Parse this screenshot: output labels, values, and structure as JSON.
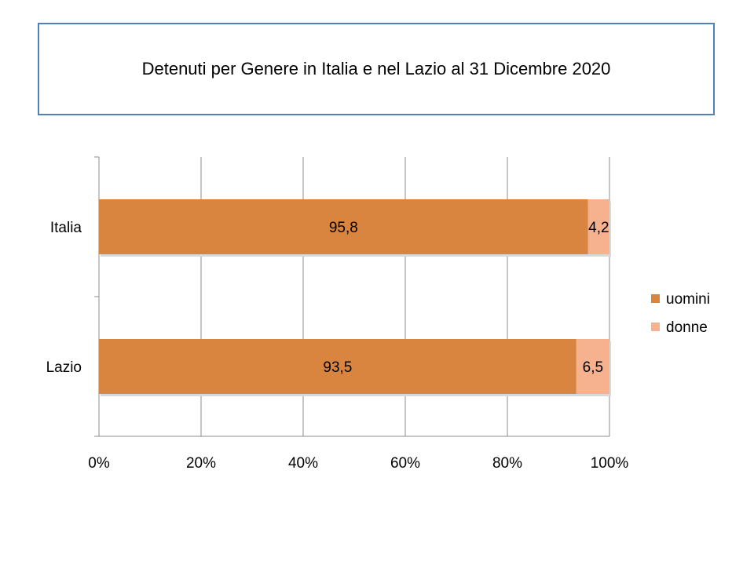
{
  "chart_data": {
    "type": "bar",
    "orientation": "horizontal",
    "stacked": "percent",
    "title": "Detenuti per Genere in Italia e nel Lazio al 31 Dicembre 2020",
    "categories": [
      "Italia",
      "Lazio"
    ],
    "series": [
      {
        "name": "uomini",
        "values": [
          95.8,
          93.5
        ],
        "labels": [
          "95,8",
          "93,5"
        ],
        "color": "#d9843f"
      },
      {
        "name": "donne",
        "values": [
          4.2,
          6.5
        ],
        "labels": [
          "4,2",
          "6,5"
        ],
        "color": "#f6b28f"
      }
    ],
    "xlim": [
      0,
      100
    ],
    "xticks": [
      "0%",
      "20%",
      "40%",
      "60%",
      "80%",
      "100%"
    ],
    "grid": true,
    "legend_position": "right"
  }
}
